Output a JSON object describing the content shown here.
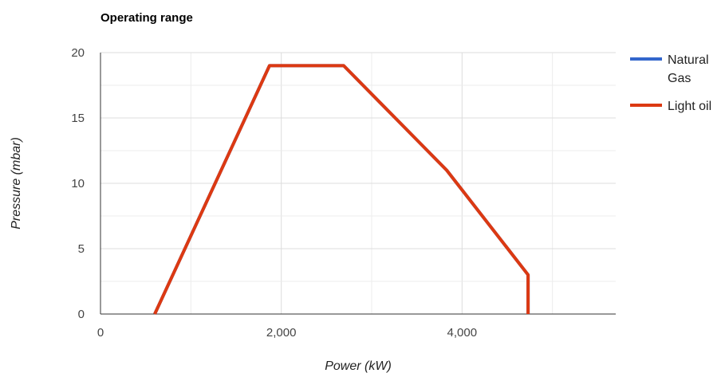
{
  "chart_data": {
    "type": "line",
    "title": "Operating range",
    "xlabel": "Power (kW)",
    "ylabel": "Pressure (mbar)",
    "xlim": [
      0,
      5700
    ],
    "ylim": [
      0,
      20
    ],
    "x_ticks": [
      0,
      2000,
      4000
    ],
    "x_tick_labels": [
      "0",
      "2,000",
      "4,000"
    ],
    "y_ticks": [
      0,
      5,
      10,
      15,
      20
    ],
    "y_tick_labels": [
      "0",
      "5",
      "10",
      "15",
      "20"
    ],
    "grid": true,
    "legend_position": "right",
    "series": [
      {
        "name": "Natural Gas",
        "color": "#3366cc",
        "x": [
          600,
          1870,
          2690,
          3830,
          4730,
          4730
        ],
        "y": [
          0,
          19,
          19,
          11,
          3,
          0
        ]
      },
      {
        "name": "Light oil",
        "color": "#dc3912",
        "x": [
          600,
          1870,
          2690,
          3830,
          4730,
          4730
        ],
        "y": [
          0,
          19,
          19,
          11,
          3,
          0
        ]
      }
    ]
  }
}
